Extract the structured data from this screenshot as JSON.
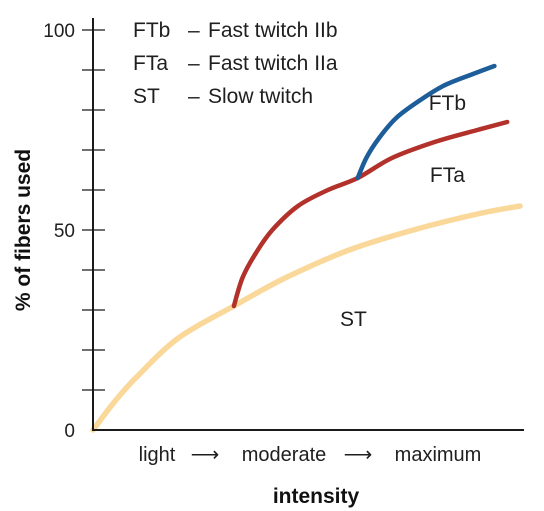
{
  "chart_data": {
    "type": "line",
    "ylabel": "% of fibers used",
    "xlabel": "intensity",
    "ylim": [
      0,
      100
    ],
    "x_range": [
      0,
      100
    ],
    "yticks": [
      0,
      50,
      100
    ],
    "y_minor_step": 10,
    "x_categories": [
      "light",
      "moderate",
      "maximum"
    ],
    "x_arrow": "⟶",
    "legend": [
      {
        "abbr": "FTb",
        "sep": "–",
        "desc": "Fast twitch IIb"
      },
      {
        "abbr": "FTa",
        "sep": "–",
        "desc": "Fast twitch IIa"
      },
      {
        "abbr": "ST",
        "sep": "–",
        "desc": "Slow twitch"
      }
    ],
    "legend_placement": "top-left",
    "grid": false,
    "series": [
      {
        "name": "ST",
        "color": "#f9d89a",
        "points": [
          [
            0,
            0
          ],
          [
            5,
            7
          ],
          [
            10,
            13
          ],
          [
            20,
            23
          ],
          [
            33,
            31
          ],
          [
            45,
            38
          ],
          [
            60,
            45
          ],
          [
            75,
            50
          ],
          [
            90,
            54
          ],
          [
            100,
            56
          ]
        ]
      },
      {
        "name": "FTa",
        "color": "#b3312b",
        "points": [
          [
            33,
            31
          ],
          [
            35,
            38
          ],
          [
            38,
            44
          ],
          [
            42,
            50
          ],
          [
            48,
            56
          ],
          [
            55,
            60
          ],
          [
            62,
            63
          ],
          [
            70,
            68
          ],
          [
            80,
            72
          ],
          [
            90,
            75
          ],
          [
            97,
            77
          ]
        ]
      },
      {
        "name": "FTb",
        "color": "#1d5e9a",
        "points": [
          [
            62,
            63
          ],
          [
            64,
            68
          ],
          [
            67,
            73
          ],
          [
            71,
            78
          ],
          [
            76,
            82
          ],
          [
            82,
            86
          ],
          [
            89,
            89
          ],
          [
            94,
            91
          ]
        ]
      }
    ],
    "curve_labels": [
      {
        "text": "FTb",
        "x": 83,
        "y": 80
      },
      {
        "text": "FTa",
        "x": 83,
        "y": 62
      },
      {
        "text": "ST",
        "x": 61,
        "y": 26
      }
    ]
  }
}
